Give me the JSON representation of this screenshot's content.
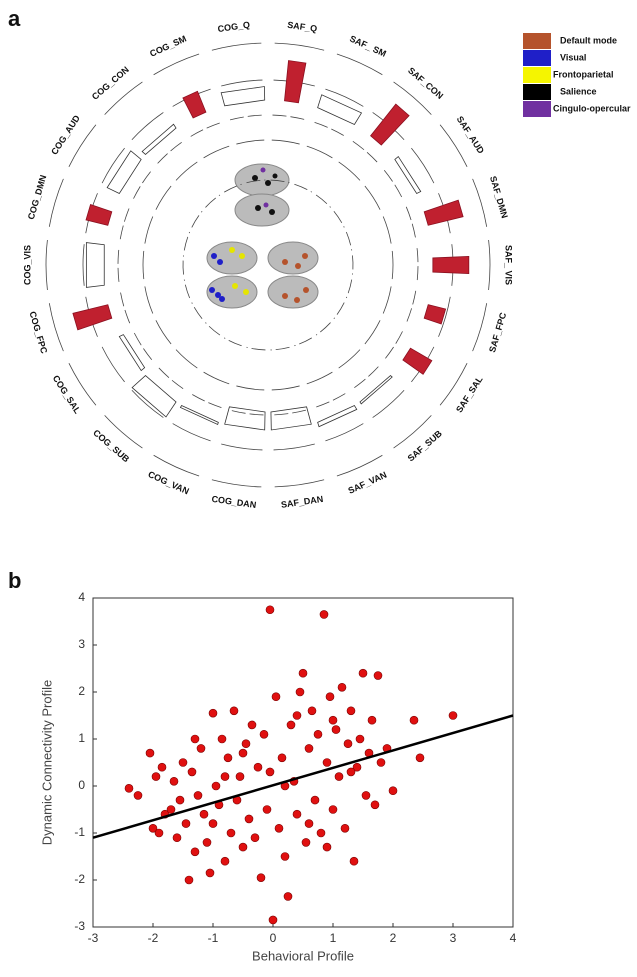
{
  "chart_data": [
    {
      "type": "radial_bar",
      "panel": "a",
      "categories": [
        "SAF_Q",
        "SAF_ SM",
        "SAF_CON",
        "SAF_AUD",
        "SAF_DMN",
        "SAF_ VIS",
        "SAF_FPC",
        "SAF_SAL",
        "SAF_SUB",
        "SAF_VAN",
        "SAF_DAN",
        "COG_DAN",
        "COG_VAN",
        "COG_SUB",
        "COG_SAL",
        "COG_FPC",
        "COG_VIS",
        "COG_DMN",
        "COG_AUD",
        "COG_CON",
        "COG_SM",
        "COG_Q"
      ],
      "values": [
        0.9,
        0.3,
        0.9,
        0.1,
        0.8,
        0.8,
        0.4,
        0.55,
        0.05,
        0.1,
        -0.4,
        -0.4,
        0.05,
        0.4,
        -0.1,
        0.8,
        0.4,
        0.5,
        0.3,
        0.1,
        0.5,
        0.3
      ],
      "colors": [
        "#c0202f",
        "none",
        "#c0202f",
        "none",
        "#c0202f",
        "#c0202f",
        "#c0202f",
        "#c0202f",
        "none",
        "none",
        "none",
        "none",
        "none",
        "none",
        "none",
        "#c0202f",
        "none",
        "#c0202f",
        "none",
        "none",
        "#c0202f",
        "none"
      ],
      "rlim": [
        -0.5,
        1
      ],
      "legend": [
        {
          "name": "Default mode",
          "color": "#b5532c"
        },
        {
          "name": "Visual",
          "color": "#1f1fc8"
        },
        {
          "name": "Frontoparietal",
          "color": "#f5f500"
        },
        {
          "name": "Salience",
          "color": "#000000"
        },
        {
          "name": "Cingulo-opercular",
          "color": "#7030a0"
        }
      ]
    },
    {
      "type": "scatter",
      "panel": "b",
      "xlabel": "Behavioral Profile",
      "ylabel": "Dynamic Connectivity Profile",
      "xlim": [
        -3,
        4
      ],
      "ylim": [
        -3,
        4
      ],
      "xticks": [
        -3,
        -2,
        -1,
        0,
        1,
        2,
        3,
        4
      ],
      "yticks": [
        -3,
        -2,
        -1,
        0,
        1,
        2,
        3,
        4
      ],
      "color": "#e01010",
      "x": [
        -2.4,
        -2.25,
        -2.05,
        -2.0,
        -1.95,
        -1.9,
        -1.85,
        -1.8,
        -1.7,
        -1.65,
        -1.6,
        -1.55,
        -1.5,
        -1.45,
        -1.4,
        -1.35,
        -1.3,
        -1.25,
        -1.2,
        -1.15,
        -1.1,
        -1.05,
        -1.0,
        -0.95,
        -0.9,
        -0.85,
        -0.8,
        -0.75,
        -0.7,
        -0.65,
        -0.6,
        -0.55,
        -0.5,
        -0.45,
        -0.4,
        -0.35,
        -0.3,
        -0.25,
        -0.2,
        -0.15,
        -0.1,
        -0.05,
        -0.05,
        0,
        0.05,
        0.1,
        0.15,
        0.2,
        0.25,
        0.3,
        0.35,
        0.4,
        0.45,
        0.5,
        0.55,
        0.6,
        0.65,
        0.7,
        0.75,
        0.8,
        0.85,
        0.9,
        0.95,
        1.0,
        1.05,
        1.1,
        1.15,
        1.2,
        1.25,
        1.3,
        1.35,
        1.4,
        1.45,
        1.5,
        1.55,
        1.6,
        1.65,
        1.7,
        1.75,
        1.8,
        1.9,
        2.0,
        2.35,
        2.45,
        3.0,
        -1.0,
        -0.5,
        0.2,
        0.6,
        1.0,
        -1.3,
        0.4,
        0.9,
        -0.8,
        1.3
      ],
      "y": [
        -0.05,
        -0.2,
        0.7,
        -0.9,
        0.2,
        -1.0,
        0.4,
        -0.6,
        -0.5,
        0.1,
        -1.1,
        -0.3,
        0.5,
        -0.8,
        -2.0,
        0.3,
        -1.4,
        -0.2,
        0.8,
        -0.6,
        -1.2,
        -1.85,
        1.55,
        0.0,
        -0.4,
        1.0,
        -1.6,
        0.6,
        -1.0,
        1.6,
        -0.3,
        0.2,
        -1.3,
        0.9,
        -0.7,
        1.3,
        -1.1,
        0.4,
        -1.95,
        1.1,
        -0.5,
        3.75,
        0.3,
        -2.85,
        1.9,
        -0.9,
        0.6,
        -1.5,
        -2.35,
        1.3,
        0.1,
        -0.6,
        2.0,
        2.4,
        -1.2,
        0.8,
        1.6,
        -0.3,
        1.1,
        -1.0,
        3.65,
        0.5,
        1.9,
        -0.5,
        1.2,
        0.2,
        2.1,
        -0.9,
        0.9,
        1.6,
        -1.6,
        0.4,
        1.0,
        2.4,
        -0.2,
        0.7,
        1.4,
        -0.4,
        2.35,
        0.5,
        0.8,
        -0.1,
        1.4,
        0.6,
        1.5,
        -0.8,
        0.7,
        0.0,
        -0.8,
        1.4,
        1.0,
        1.5,
        -1.3,
        0.2,
        0.3
      ],
      "fit": {
        "x": [
          -3,
          4
        ],
        "y": [
          -1.1,
          1.5
        ]
      }
    }
  ]
}
